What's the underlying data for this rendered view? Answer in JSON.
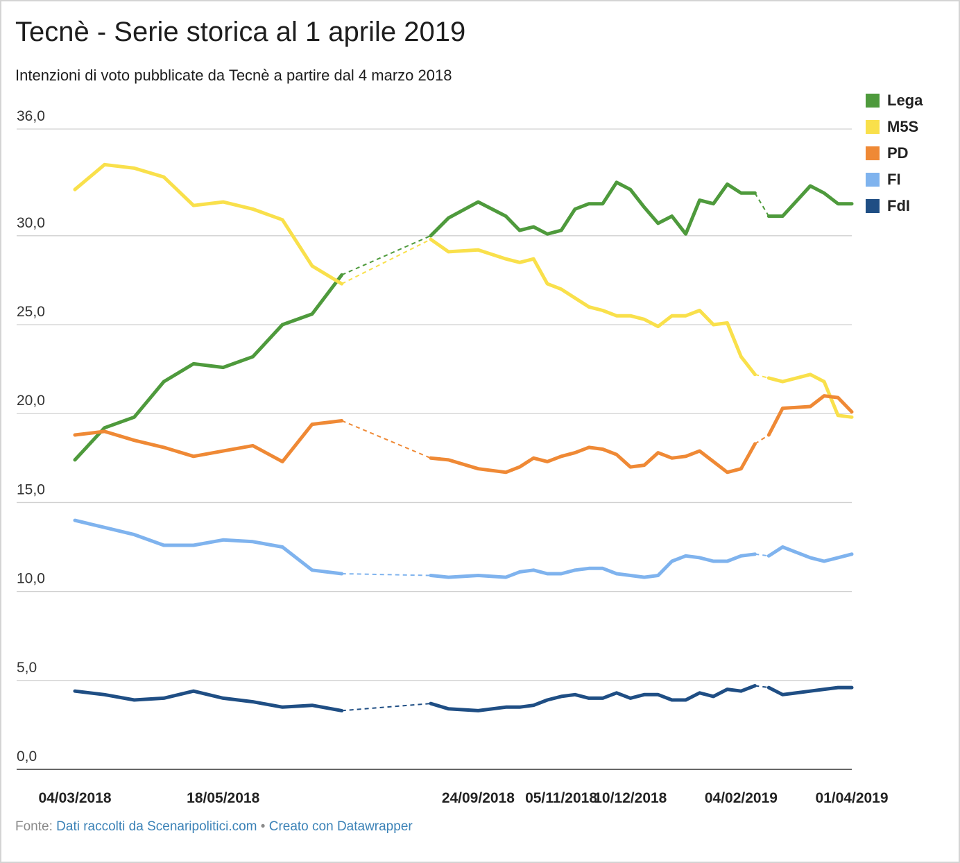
{
  "chart_data": {
    "type": "line",
    "title": "Tecnè - Serie storica al 1 aprile 2019",
    "subtitle": "Intenzioni di voto pubblicate da Tecnè a partire dal 4 marzo 2018",
    "ylim": [
      0,
      36
    ],
    "y_ticks": [
      {
        "value": 0,
        "label": "0,0"
      },
      {
        "value": 5,
        "label": "5,0"
      },
      {
        "value": 10,
        "label": "10,0"
      },
      {
        "value": 15,
        "label": "15,0"
      },
      {
        "value": 20,
        "label": "20,0"
      },
      {
        "value": 25,
        "label": "25,0"
      },
      {
        "value": 30,
        "label": "30,0"
      },
      {
        "value": 36,
        "label": "36,0"
      }
    ],
    "x": [
      "2018-03-04",
      "2018-03-19",
      "2018-04-03",
      "2018-04-18",
      "2018-05-03",
      "2018-05-18",
      "2018-06-02",
      "2018-06-17",
      "2018-07-02",
      "2018-07-17",
      "2018-08-31",
      "2018-09-09",
      "2018-09-24",
      "2018-10-08",
      "2018-10-15",
      "2018-10-22",
      "2018-10-29",
      "2018-11-05",
      "2018-11-12",
      "2018-11-19",
      "2018-11-26",
      "2018-12-03",
      "2018-12-10",
      "2018-12-17",
      "2018-12-24",
      "2018-12-31",
      "2019-01-07",
      "2019-01-14",
      "2019-01-21",
      "2019-01-28",
      "2019-02-04",
      "2019-02-11",
      "2019-02-18",
      "2019-02-25",
      "2019-03-11",
      "2019-03-18",
      "2019-03-25",
      "2019-04-01"
    ],
    "x_ticks": [
      {
        "value": "2018-03-04",
        "label": "04/03/2018"
      },
      {
        "value": "2018-05-18",
        "label": "18/05/2018"
      },
      {
        "value": "2018-09-24",
        "label": "24/09/2018"
      },
      {
        "value": "2018-11-05",
        "label": "05/11/2018"
      },
      {
        "value": "2018-12-10",
        "label": "10/12/2018"
      },
      {
        "value": "2019-02-04",
        "label": "04/02/2019"
      },
      {
        "value": "2019-04-01",
        "label": "01/04/2019"
      }
    ],
    "legend_position": "top-right",
    "grid": true,
    "series": [
      {
        "name": "Lega",
        "color": "#4e9a3c",
        "values": [
          17.4,
          19.2,
          19.8,
          21.8,
          22.8,
          22.6,
          23.2,
          25.0,
          25.6,
          27.8,
          30.0,
          31.0,
          31.9,
          31.1,
          30.3,
          30.5,
          30.1,
          30.3,
          31.5,
          31.8,
          31.8,
          33.0,
          32.6,
          31.6,
          30.7,
          31.1,
          30.1,
          32.0,
          31.8,
          32.9,
          32.4,
          32.4,
          31.1,
          31.1,
          32.8,
          32.4,
          31.8,
          31.8
        ]
      },
      {
        "name": "M5S",
        "color": "#f9e04b",
        "values": [
          32.6,
          34.0,
          33.8,
          33.3,
          31.7,
          31.9,
          31.5,
          30.9,
          28.3,
          27.3,
          29.8,
          29.1,
          29.2,
          28.7,
          28.5,
          28.7,
          27.3,
          27.0,
          26.5,
          26.0,
          25.8,
          25.5,
          25.5,
          25.3,
          24.9,
          25.5,
          25.5,
          25.8,
          25.0,
          25.1,
          23.2,
          22.2,
          22.0,
          21.8,
          22.2,
          21.8,
          19.9,
          19.8
        ]
      },
      {
        "name": "PD",
        "color": "#ef8935",
        "values": [
          18.8,
          19.0,
          18.5,
          18.1,
          17.6,
          17.9,
          18.2,
          17.3,
          19.4,
          19.6,
          17.5,
          17.4,
          16.9,
          16.7,
          17.0,
          17.5,
          17.3,
          17.6,
          17.8,
          18.1,
          18.0,
          17.7,
          17.0,
          17.1,
          17.8,
          17.5,
          17.6,
          17.9,
          17.3,
          16.7,
          16.9,
          18.3,
          18.8,
          20.3,
          20.4,
          21.0,
          20.9,
          20.1
        ]
      },
      {
        "name": "FI",
        "color": "#7fb3ee",
        "values": [
          14.0,
          13.6,
          13.2,
          12.6,
          12.6,
          12.9,
          12.8,
          12.5,
          11.2,
          11.0,
          10.9,
          10.8,
          10.9,
          10.8,
          11.1,
          11.2,
          11.0,
          11.0,
          11.2,
          11.3,
          11.3,
          11.0,
          10.9,
          10.8,
          10.9,
          11.7,
          12.0,
          11.9,
          11.7,
          11.7,
          12.0,
          12.1,
          12.0,
          12.5,
          11.9,
          11.7,
          11.9,
          12.1
        ]
      },
      {
        "name": "FdI",
        "color": "#1f4e84",
        "values": [
          4.4,
          4.2,
          3.9,
          4.0,
          4.4,
          4.0,
          3.8,
          3.5,
          3.6,
          3.3,
          3.7,
          3.4,
          3.3,
          3.5,
          3.5,
          3.6,
          3.9,
          4.1,
          4.2,
          4.0,
          4.0,
          4.3,
          4.0,
          4.2,
          4.2,
          3.9,
          3.9,
          4.3,
          4.1,
          4.5,
          4.4,
          4.7,
          4.6,
          4.2,
          4.4,
          4.5,
          4.6,
          4.6
        ]
      }
    ],
    "dashed_gaps": [
      {
        "from": "2018-07-17",
        "to": "2018-08-31"
      },
      {
        "from": "2019-02-11",
        "to": "2019-02-25"
      }
    ]
  },
  "source": {
    "prefix": "Fonte:",
    "data_link": "Dati raccolti da Scenaripolitici.com",
    "separator": "•",
    "tool_link": "Creato con Datawrapper"
  }
}
